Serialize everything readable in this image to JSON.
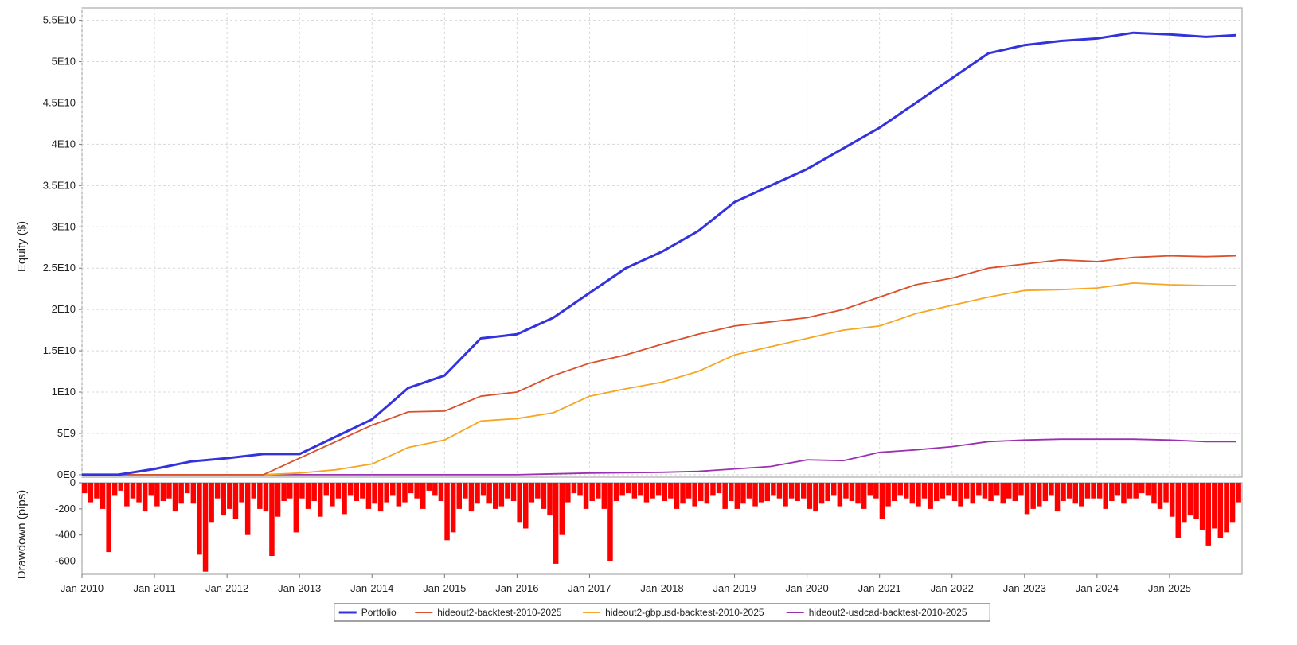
{
  "chart_data": [
    {
      "type": "line",
      "ylabel": "Equity ($)",
      "ylim": [
        -300000000,
        56500000000
      ],
      "y_ticks": [
        {
          "value": 0,
          "label": "0E0"
        },
        {
          "value": 5000000000,
          "label": "5E9"
        },
        {
          "value": 10000000000,
          "label": "1E10"
        },
        {
          "value": 15000000000,
          "label": "1.5E10"
        },
        {
          "value": 20000000000,
          "label": "2E10"
        },
        {
          "value": 25000000000,
          "label": "2.5E10"
        },
        {
          "value": 30000000000,
          "label": "3E10"
        },
        {
          "value": 35000000000,
          "label": "3.5E10"
        },
        {
          "value": 40000000000,
          "label": "4E10"
        },
        {
          "value": 45000000000,
          "label": "4.5E10"
        },
        {
          "value": 50000000000,
          "label": "5E10"
        },
        {
          "value": 55000000000,
          "label": "5.5E10"
        }
      ],
      "x": [
        "2010-01",
        "2010-07",
        "2011-01",
        "2011-07",
        "2012-01",
        "2012-07",
        "2013-01",
        "2013-07",
        "2014-01",
        "2014-07",
        "2015-01",
        "2015-07",
        "2016-01",
        "2016-07",
        "2017-01",
        "2017-07",
        "2018-01",
        "2018-07",
        "2019-01",
        "2019-07",
        "2020-01",
        "2020-07",
        "2021-01",
        "2021-07",
        "2022-01",
        "2022-07",
        "2023-01",
        "2023-07",
        "2024-01",
        "2024-07",
        "2025-01",
        "2025-07",
        "2025-12"
      ],
      "grid": true,
      "series": [
        {
          "name": "Portfolio",
          "color": "#3333dd",
          "values": [
            0,
            0,
            700000000,
            1600000000,
            2000000000,
            2500000000,
            2500000000,
            4600000000,
            6700000000,
            10500000000,
            12000000000,
            16500000000,
            17000000000,
            19000000000,
            22000000000,
            25000000000,
            27000000000,
            29500000000,
            33000000000,
            35000000000,
            37000000000,
            39500000000,
            42000000000,
            45000000000,
            48000000000,
            51000000000,
            52000000000,
            52500000000,
            52800000000,
            53500000000,
            53300000000,
            53000000000,
            53200000000
          ]
        },
        {
          "name": "hideout2-backtest-2010-2025",
          "color": "#d9502a",
          "values": [
            0,
            0,
            0,
            0,
            0,
            0,
            2000000000,
            4000000000,
            6000000000,
            7600000000,
            7700000000,
            9500000000,
            10000000000,
            12000000000,
            13500000000,
            14500000000,
            15800000000,
            17000000000,
            18000000000,
            18500000000,
            19000000000,
            20000000000,
            21500000000,
            23000000000,
            23800000000,
            25000000000,
            25500000000,
            26000000000,
            25800000000,
            26300000000,
            26500000000,
            26400000000,
            26500000000
          ]
        },
        {
          "name": "hideout2-gbpusd-backtest-2010-2025",
          "color": "#f5a623",
          "values": [
            0,
            0,
            0,
            0,
            0,
            0,
            200000000,
            600000000,
            1300000000,
            3300000000,
            4200000000,
            6500000000,
            6800000000,
            7500000000,
            9500000000,
            10400000000,
            11200000000,
            12500000000,
            14500000000,
            15500000000,
            16500000000,
            17500000000,
            18000000000,
            19500000000,
            20500000000,
            21500000000,
            22300000000,
            22400000000,
            22600000000,
            23200000000,
            23000000000,
            22900000000,
            22900000000
          ]
        },
        {
          "name": "hideout2-usdcad-backtest-2010-2025",
          "color": "#9b30b0",
          "values": [
            0,
            0,
            0,
            0,
            0,
            0,
            0,
            0,
            0,
            0,
            0,
            0,
            0,
            100000000,
            200000000,
            250000000,
            300000000,
            400000000,
            700000000,
            1000000000,
            1800000000,
            1700000000,
            2700000000,
            3000000000,
            3400000000,
            4000000000,
            4200000000,
            4300000000,
            4300000000,
            4300000000,
            4200000000,
            4000000000,
            4000000000
          ]
        }
      ]
    },
    {
      "type": "area",
      "ylabel": "Drawdown (pips)",
      "ylim": [
        -700,
        0
      ],
      "y_ticks": [
        {
          "value": 0,
          "label": "0"
        },
        {
          "value": -200,
          "label": "-200"
        },
        {
          "value": -400,
          "label": "-400"
        },
        {
          "value": -600,
          "label": "-600"
        }
      ],
      "x_ticks": [
        "Jan-2010",
        "Jan-2011",
        "Jan-2012",
        "Jan-2013",
        "Jan-2014",
        "Jan-2015",
        "Jan-2016",
        "Jan-2017",
        "Jan-2018",
        "Jan-2019",
        "Jan-2020",
        "Jan-2021",
        "Jan-2022",
        "Jan-2023",
        "Jan-2024",
        "Jan-2025"
      ],
      "x_start": "2010-01",
      "x_end": "2025-12",
      "grid": false,
      "series": [
        {
          "color": "#ff0000",
          "x": [
            "2010-01",
            "2010-02",
            "2010-03",
            "2010-04",
            "2010-05",
            "2010-06",
            "2010-07",
            "2010-08",
            "2010-09",
            "2010-10",
            "2010-11",
            "2010-12",
            "2011-01",
            "2011-02",
            "2011-03",
            "2011-04",
            "2011-05",
            "2011-06",
            "2011-07",
            "2011-08",
            "2011-09",
            "2011-10",
            "2011-11",
            "2011-12",
            "2012-01",
            "2012-02",
            "2012-03",
            "2012-04",
            "2012-05",
            "2012-06",
            "2012-07",
            "2012-08",
            "2012-09",
            "2012-10",
            "2012-11",
            "2012-12",
            "2013-01",
            "2013-02",
            "2013-03",
            "2013-04",
            "2013-05",
            "2013-06",
            "2013-07",
            "2013-08",
            "2013-09",
            "2013-10",
            "2013-11",
            "2013-12",
            "2014-01",
            "2014-02",
            "2014-03",
            "2014-04",
            "2014-05",
            "2014-06",
            "2014-07",
            "2014-08",
            "2014-09",
            "2014-10",
            "2014-11",
            "2014-12",
            "2015-01",
            "2015-02",
            "2015-03",
            "2015-04",
            "2015-05",
            "2015-06",
            "2015-07",
            "2015-08",
            "2015-09",
            "2015-10",
            "2015-11",
            "2015-12",
            "2016-01",
            "2016-02",
            "2016-03",
            "2016-04",
            "2016-05",
            "2016-06",
            "2016-07",
            "2016-08",
            "2016-09",
            "2016-10",
            "2016-11",
            "2016-12",
            "2017-01",
            "2017-02",
            "2017-03",
            "2017-04",
            "2017-05",
            "2017-06",
            "2017-07",
            "2017-08",
            "2017-09",
            "2017-10",
            "2017-11",
            "2017-12",
            "2018-01",
            "2018-02",
            "2018-03",
            "2018-04",
            "2018-05",
            "2018-06",
            "2018-07",
            "2018-08",
            "2018-09",
            "2018-10",
            "2018-11",
            "2018-12",
            "2019-01",
            "2019-02",
            "2019-03",
            "2019-04",
            "2019-05",
            "2019-06",
            "2019-07",
            "2019-08",
            "2019-09",
            "2019-10",
            "2019-11",
            "2019-12",
            "2020-01",
            "2020-02",
            "2020-03",
            "2020-04",
            "2020-05",
            "2020-06",
            "2020-07",
            "2020-08",
            "2020-09",
            "2020-10",
            "2020-11",
            "2020-12",
            "2021-01",
            "2021-02",
            "2021-03",
            "2021-04",
            "2021-05",
            "2021-06",
            "2021-07",
            "2021-08",
            "2021-09",
            "2021-10",
            "2021-11",
            "2021-12",
            "2022-01",
            "2022-02",
            "2022-03",
            "2022-04",
            "2022-05",
            "2022-06",
            "2022-07",
            "2022-08",
            "2022-09",
            "2022-10",
            "2022-11",
            "2022-12",
            "2023-01",
            "2023-02",
            "2023-03",
            "2023-04",
            "2023-05",
            "2023-06",
            "2023-07",
            "2023-08",
            "2023-09",
            "2023-10",
            "2023-11",
            "2023-12",
            "2024-01",
            "2024-02",
            "2024-03",
            "2024-04",
            "2024-05",
            "2024-06",
            "2024-07",
            "2024-08",
            "2024-09",
            "2024-10",
            "2024-11",
            "2024-12",
            "2025-01",
            "2025-02",
            "2025-03",
            "2025-04",
            "2025-05",
            "2025-06",
            "2025-07",
            "2025-08",
            "2025-09",
            "2025-10",
            "2025-11",
            "2025-12"
          ],
          "values": [
            -80,
            -150,
            -120,
            -200,
            -530,
            -100,
            -60,
            -180,
            -120,
            -150,
            -220,
            -100,
            -180,
            -140,
            -120,
            -220,
            -160,
            -80,
            -160,
            -550,
            -680,
            -300,
            -120,
            -250,
            -200,
            -280,
            -150,
            -400,
            -120,
            -200,
            -220,
            -560,
            -260,
            -140,
            -120,
            -380,
            -120,
            -200,
            -140,
            -260,
            -100,
            -180,
            -120,
            -240,
            -100,
            -140,
            -120,
            -200,
            -160,
            -220,
            -150,
            -100,
            -180,
            -150,
            -80,
            -120,
            -200,
            -60,
            -100,
            -140,
            -440,
            -380,
            -200,
            -120,
            -220,
            -160,
            -100,
            -160,
            -200,
            -180,
            -120,
            -140,
            -300,
            -350,
            -150,
            -120,
            -200,
            -250,
            -620,
            -400,
            -150,
            -80,
            -100,
            -200,
            -140,
            -120,
            -200,
            -600,
            -140,
            -100,
            -80,
            -120,
            -100,
            -150,
            -120,
            -100,
            -140,
            -120,
            -200,
            -160,
            -120,
            -180,
            -140,
            -160,
            -100,
            -80,
            -200,
            -140,
            -200,
            -160,
            -120,
            -180,
            -150,
            -140,
            -100,
            -120,
            -180,
            -120,
            -140,
            -120,
            -200,
            -220,
            -160,
            -140,
            -100,
            -180,
            -120,
            -140,
            -160,
            -200,
            -100,
            -120,
            -280,
            -180,
            -140,
            -100,
            -120,
            -160,
            -180,
            -120,
            -200,
            -140,
            -120,
            -100,
            -140,
            -180,
            -120,
            -160,
            -100,
            -120,
            -140,
            -100,
            -160,
            -120,
            -140,
            -100,
            -240,
            -200,
            -180,
            -140,
            -100,
            -220,
            -140,
            -120,
            -160,
            -180,
            -120,
            -120,
            -120,
            -200,
            -140,
            -100,
            -160,
            -120,
            -120,
            -80,
            -100,
            -160,
            -200,
            -150,
            -260,
            -420,
            -300,
            -250,
            -280,
            -360,
            -480,
            -350,
            -420,
            -380,
            -300,
            -150
          ]
        }
      ]
    }
  ],
  "legend": [
    {
      "label": "Portfolio",
      "color": "#3333dd"
    },
    {
      "label": "hideout2-backtest-2010-2025",
      "color": "#d9502a"
    },
    {
      "label": "hideout2-gbpusd-backtest-2010-2025",
      "color": "#f5a623"
    },
    {
      "label": "hideout2-usdcad-backtest-2010-2025",
      "color": "#9b30b0"
    }
  ]
}
